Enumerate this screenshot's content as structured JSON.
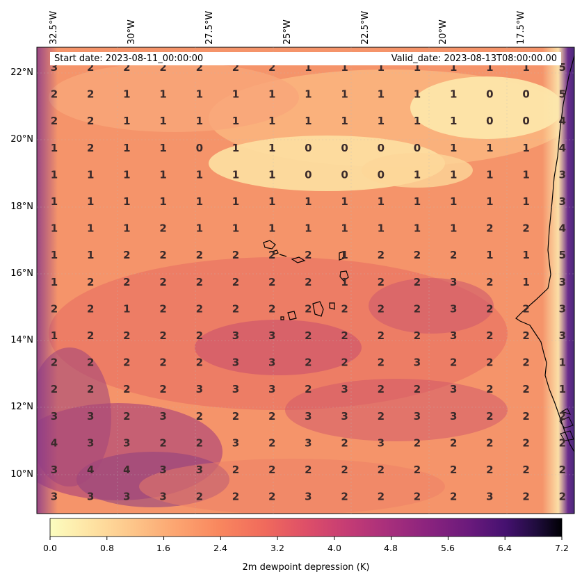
{
  "header": {
    "start_date": "Start date: 2023-08-11_00:00:00",
    "valid_date": "Valid_date: 2023-08-13T08:00:00.00"
  },
  "axes": {
    "longitude_labels": [
      "32.5°W",
      "30°W",
      "27.5°W",
      "25°W",
      "22.5°W",
      "20°W",
      "17.5°W"
    ],
    "latitude_labels": [
      "22°N",
      "20°N",
      "18°N",
      "16°N",
      "14°N",
      "12°N",
      "10°N"
    ]
  },
  "colorbar": {
    "title": "2m dewpoint depression (K)",
    "tick_labels": [
      "0.0",
      "0.8",
      "1.6",
      "2.4",
      "3.2",
      "4.0",
      "4.8",
      "5.6",
      "6.4",
      "7.2"
    ],
    "min": 0.0,
    "max": 7.2,
    "colormap": "magma_r"
  },
  "map_data": {
    "extent": {
      "lon": [
        -33.0,
        -15.5
      ],
      "lat": [
        9.0,
        22.8
      ]
    },
    "value_grid_rows_top_to_bottom": [
      [
        "3",
        "2",
        "2",
        "2",
        "2",
        "2",
        "2",
        "1",
        "1",
        "1",
        "1",
        "1",
        "1",
        "1",
        "5"
      ],
      [
        "2",
        "2",
        "1",
        "1",
        "1",
        "1",
        "1",
        "1",
        "1",
        "1",
        "1",
        "1",
        "0",
        "0",
        "5"
      ],
      [
        "2",
        "2",
        "1",
        "1",
        "1",
        "1",
        "1",
        "1",
        "1",
        "1",
        "1",
        "1",
        "0",
        "0",
        "4"
      ],
      [
        "1",
        "2",
        "1",
        "1",
        "0",
        "1",
        "1",
        "0",
        "0",
        "0",
        "0",
        "1",
        "1",
        "1",
        "4"
      ],
      [
        "1",
        "1",
        "1",
        "1",
        "1",
        "1",
        "1",
        "0",
        "0",
        "0",
        "1",
        "1",
        "1",
        "1",
        "3"
      ],
      [
        "1",
        "1",
        "1",
        "1",
        "1",
        "1",
        "1",
        "1",
        "1",
        "1",
        "1",
        "1",
        "1",
        "1",
        "3"
      ],
      [
        "1",
        "1",
        "1",
        "2",
        "1",
        "1",
        "1",
        "1",
        "1",
        "1",
        "1",
        "1",
        "2",
        "2",
        "4"
      ],
      [
        "1",
        "1",
        "2",
        "2",
        "2",
        "2",
        "2",
        "2",
        "1",
        "2",
        "2",
        "2",
        "1",
        "1",
        "5"
      ],
      [
        "1",
        "2",
        "2",
        "2",
        "2",
        "2",
        "2",
        "2",
        "1",
        "2",
        "2",
        "3",
        "2",
        "1",
        "3"
      ],
      [
        "2",
        "2",
        "1",
        "2",
        "2",
        "2",
        "2",
        "2",
        "2",
        "2",
        "2",
        "3",
        "2",
        "2",
        "3"
      ],
      [
        "1",
        "2",
        "2",
        "2",
        "2",
        "3",
        "3",
        "2",
        "2",
        "2",
        "2",
        "3",
        "2",
        "2",
        "3"
      ],
      [
        "2",
        "2",
        "2",
        "2",
        "2",
        "3",
        "3",
        "2",
        "2",
        "2",
        "3",
        "2",
        "2",
        "2",
        "1"
      ],
      [
        "2",
        "2",
        "2",
        "2",
        "3",
        "3",
        "3",
        "2",
        "3",
        "2",
        "2",
        "3",
        "2",
        "2",
        "1"
      ],
      [
        "3",
        "3",
        "2",
        "3",
        "2",
        "2",
        "2",
        "3",
        "3",
        "2",
        "3",
        "3",
        "2",
        "2",
        "2"
      ],
      [
        "4",
        "3",
        "3",
        "2",
        "2",
        "3",
        "2",
        "3",
        "2",
        "3",
        "2",
        "2",
        "2",
        "2",
        "2"
      ],
      [
        "3",
        "4",
        "4",
        "3",
        "3",
        "2",
        "2",
        "2",
        "2",
        "2",
        "2",
        "2",
        "2",
        "2",
        "2"
      ],
      [
        "3",
        "3",
        "3",
        "3",
        "2",
        "2",
        "2",
        "3",
        "2",
        "2",
        "2",
        "2",
        "3",
        "2",
        "2"
      ]
    ]
  }
}
